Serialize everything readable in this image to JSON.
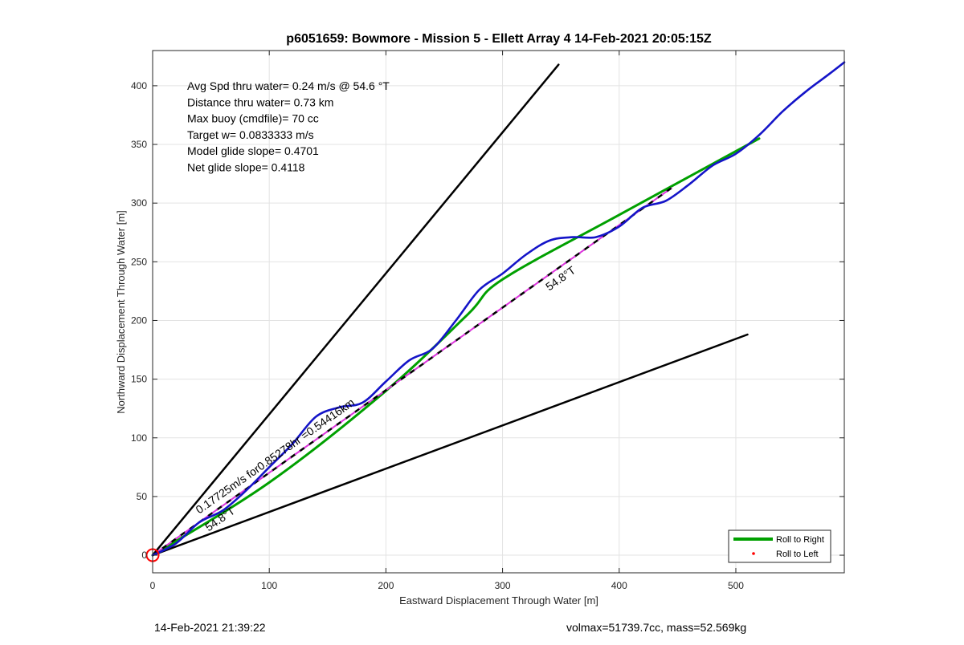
{
  "chart_data": {
    "type": "line",
    "title": "p6051659: Bowmore - Mission 5 - Ellett Array 4 14-Feb-2021 20:05:15Z",
    "xlabel": "Eastward Displacement Through Water [m]",
    "ylabel": "Northward Displacement Through Water [m]",
    "xlim": [
      0,
      593
    ],
    "ylim": [
      -15,
      430
    ],
    "x_ticks": [
      0,
      100,
      200,
      300,
      400,
      500
    ],
    "y_ticks": [
      0,
      50,
      100,
      150,
      200,
      250,
      300,
      350,
      400
    ],
    "grid": true,
    "legend_position": "bottom-right",
    "legend": [
      {
        "label": "Roll to Right",
        "color": "#00a000",
        "style": "line"
      },
      {
        "label": "Roll to Left",
        "color": "#ff0000",
        "style": "dot"
      }
    ],
    "info_lines": [
      "Avg Spd thru water=  0.24 m/s @  54.6 °T",
      "Distance thru water=  0.73 km",
      "Max buoy (cmdfile)= 70 cc",
      "Target w= 0.0833333 m/s",
      "Model glide slope= 0.4701",
      "Net glide slope= 0.4118"
    ],
    "annotations": [
      {
        "text": "0.17725m/s for0.85278hr =0.54416km",
        "x": 40,
        "y": 35,
        "angle_deg": 54.8
      },
      {
        "text": "54.8°T",
        "x": 48,
        "y": 20,
        "angle_deg": 54.8
      },
      {
        "text": "54.8°T",
        "x": 340,
        "y": 225,
        "angle_deg": 54.8
      }
    ],
    "series": [
      {
        "name": "",
        "color": "#000000",
        "width": 2.5,
        "dash": "",
        "x": [
          0,
          348
        ],
        "y": [
          0,
          418
        ]
      },
      {
        "name": "",
        "color": "#000000",
        "width": 2.5,
        "dash": "",
        "x": [
          0,
          510
        ],
        "y": [
          0,
          188
        ]
      },
      {
        "name": "Roll to Right",
        "color": "#00a000",
        "width": 3,
        "dash": "",
        "x": [
          0,
          100,
          200,
          270,
          300,
          400,
          520
        ],
        "y": [
          0,
          62,
          140,
          205,
          235,
          290,
          355
        ]
      },
      {
        "name": "",
        "color": "#000000",
        "width": 2.5,
        "dash": "8,6",
        "x": [
          0,
          445
        ],
        "y": [
          0,
          313
        ]
      },
      {
        "name": "",
        "color": "#dd33dd",
        "width": 2,
        "dash": "8,6",
        "dashoffset": 7,
        "x": [
          0,
          445
        ],
        "y": [
          0,
          313
        ]
      },
      {
        "name": "",
        "color": "#1414c8",
        "width": 2.6,
        "dash": "",
        "x": [
          0,
          20,
          40,
          60,
          80,
          100,
          120,
          140,
          160,
          180,
          200,
          220,
          240,
          260,
          280,
          300,
          320,
          340,
          360,
          380,
          400,
          420,
          440,
          460,
          480,
          500,
          520,
          540,
          560,
          580,
          593
        ],
        "y": [
          0,
          10,
          28,
          38,
          55,
          75,
          95,
          118,
          126,
          130,
          148,
          166,
          176,
          200,
          226,
          240,
          256,
          268,
          271,
          271,
          280,
          296,
          302,
          316,
          332,
          342,
          358,
          378,
          395,
          410,
          420
        ]
      }
    ],
    "start_marker": {
      "x": 0,
      "y": 0,
      "color": "#ff0000"
    },
    "footer_left": "14-Feb-2021 21:39:22",
    "footer_right": "volmax=51739.7cc, mass=52.569kg"
  }
}
